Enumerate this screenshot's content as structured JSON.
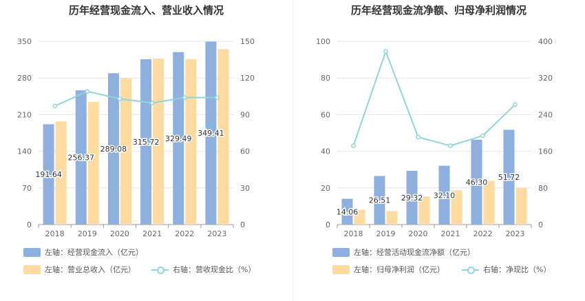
{
  "colors": {
    "bar_main": "#8eb0de",
    "bar_second": "#ffdba0",
    "line": "#8fd5da",
    "grid": "#e6e6e6"
  },
  "chart_data": [
    {
      "type": "bar",
      "title": "历年经营现金流入、营业收入情况",
      "categories": [
        "2018",
        "2019",
        "2020",
        "2021",
        "2022",
        "2023"
      ],
      "ylim_left": [
        0,
        350
      ],
      "ylim_right": [
        0,
        150
      ],
      "left_ticks": [
        "0",
        "70",
        "140",
        "210",
        "280",
        "350"
      ],
      "right_ticks": [
        "0",
        "30",
        "60",
        "90",
        "120",
        "150"
      ],
      "series": [
        {
          "name": "左轴：经营现金流入（亿元）",
          "axis": "left",
          "kind": "bar",
          "color": "#8eb0de",
          "values": [
            191.64,
            256.37,
            289.08,
            315.72,
            329.49,
            349.41
          ],
          "labels": [
            "191.64",
            "256.37",
            "289.08",
            "315.72",
            "329.49",
            "349.41"
          ]
        },
        {
          "name": "左轴：营业总收入（亿元）",
          "axis": "left",
          "kind": "bar",
          "color": "#ffdba0",
          "values": [
            197,
            234,
            280,
            317,
            316,
            335
          ]
        },
        {
          "name": "右轴：营收现金比（%）",
          "axis": "right",
          "kind": "line",
          "color": "#8fd5da",
          "values": [
            97,
            109,
            103,
            99.5,
            104,
            104
          ]
        }
      ]
    },
    {
      "type": "bar",
      "title": "历年经营现金流净额、归母净利润情况",
      "categories": [
        "2018",
        "2019",
        "2020",
        "2021",
        "2022",
        "2023"
      ],
      "ylim_left": [
        0,
        100
      ],
      "ylim_right": [
        0,
        400
      ],
      "left_ticks": [
        "0",
        "20",
        "40",
        "60",
        "80",
        "100"
      ],
      "right_ticks": [
        "0",
        "80",
        "160",
        "240",
        "320",
        "400"
      ],
      "series": [
        {
          "name": "左轴：经营活动现金流净额（亿元）",
          "axis": "left",
          "kind": "bar",
          "color": "#8eb0de",
          "values": [
            14.06,
            26.51,
            29.32,
            32.1,
            46.3,
            51.72
          ],
          "labels": [
            "14.06",
            "26.51",
            "29.32",
            "32.10",
            "46.30",
            "51.72"
          ]
        },
        {
          "name": "左轴：归母净利润（亿元）",
          "axis": "left",
          "kind": "bar",
          "color": "#ffdba0",
          "values": [
            8,
            7.3,
            15.3,
            18.6,
            23.8,
            20
          ]
        },
        {
          "name": "右轴：净现比（%）",
          "axis": "right",
          "kind": "line",
          "color": "#8fd5da",
          "values": [
            172,
            378,
            191,
            172,
            194,
            262
          ]
        }
      ]
    }
  ]
}
